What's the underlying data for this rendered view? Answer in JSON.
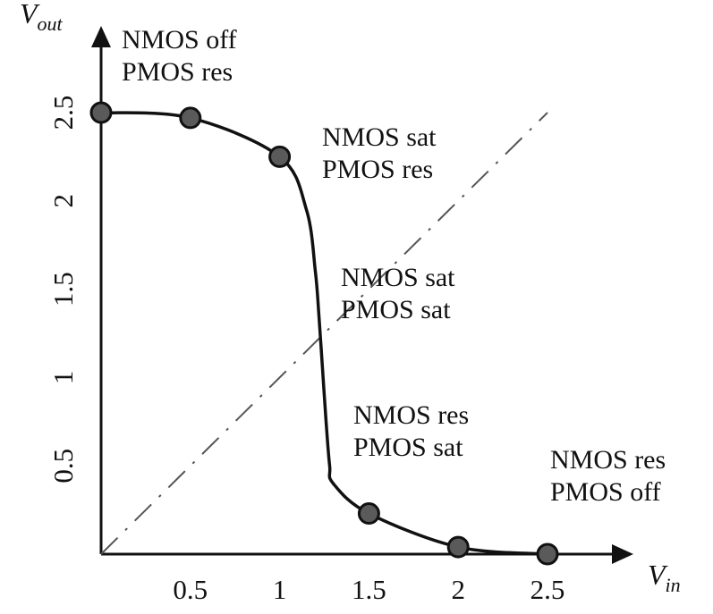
{
  "chart_data": {
    "type": "line",
    "title": "",
    "xlabel": {
      "main": "V",
      "sub": "in"
    },
    "ylabel": {
      "main": "V",
      "sub": "out"
    },
    "xlim": [
      0,
      2.5
    ],
    "ylim": [
      0,
      2.5
    ],
    "x_ticks": [
      "0.5",
      "1",
      "1.5",
      "2",
      "2.5"
    ],
    "y_ticks": [
      "0.5",
      "1",
      "1.5",
      "2",
      "2.5"
    ],
    "series": [
      {
        "style": "solid-curve",
        "x": [
          0,
          0.5,
          1.0,
          1.15,
          1.2,
          1.22,
          1.24,
          1.26,
          1.28,
          1.3,
          1.5,
          2.0,
          2.5
        ],
        "y": [
          2.5,
          2.47,
          2.25,
          1.95,
          1.6,
          1.35,
          1.05,
          0.75,
          0.5,
          0.4,
          0.23,
          0.04,
          0.0
        ]
      },
      {
        "style": "dash-dot-diagonal",
        "x": [
          0,
          2.5
        ],
        "y": [
          0,
          2.5
        ]
      }
    ],
    "markers": [
      {
        "x": 0,
        "y": 2.5
      },
      {
        "x": 0.5,
        "y": 2.47
      },
      {
        "x": 1.0,
        "y": 2.25
      },
      {
        "x": 1.5,
        "y": 0.23
      },
      {
        "x": 2.0,
        "y": 0.04
      },
      {
        "x": 2.5,
        "y": 0.0
      }
    ],
    "annotations": [
      {
        "line1": "NMOS off",
        "line2": "PMOS res"
      },
      {
        "line1": "NMOS sat",
        "line2": "PMOS res"
      },
      {
        "line1": "NMOS sat",
        "line2": "PMOS sat"
      },
      {
        "line1": "NMOS res",
        "line2": "PMOS sat"
      },
      {
        "line1": "NMOS res",
        "line2": "PMOS off"
      }
    ],
    "grid": false,
    "legend": "none",
    "colors": {
      "curve": "#111111",
      "marker_fill": "#5a5a5a",
      "marker_stroke": "#111111",
      "diagonal": "#555555"
    }
  }
}
